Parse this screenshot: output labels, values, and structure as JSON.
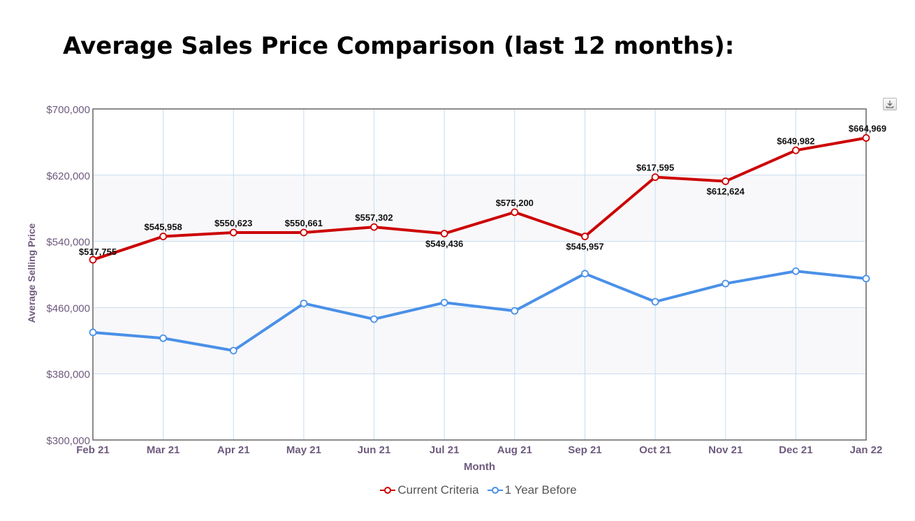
{
  "title": "Average Sales Price Comparison (last 12 months):",
  "export_icon": "download-icon",
  "colors": {
    "current": "#cc0000",
    "prior": "#4a90e8",
    "axis_text": "#6e5a7e",
    "grid": "#c6dcef"
  },
  "chart_data": {
    "type": "line",
    "categories": [
      "Feb 21",
      "Mar 21",
      "Apr 21",
      "May 21",
      "Jun 21",
      "Jul 21",
      "Aug 21",
      "Sep 21",
      "Oct 21",
      "Nov 21",
      "Dec 21",
      "Jan 22"
    ],
    "series": [
      {
        "name": "Current Criteria",
        "values": [
          517755,
          545958,
          550623,
          550661,
          557302,
          549436,
          575200,
          545957,
          617595,
          612624,
          649982,
          664969
        ]
      },
      {
        "name": "1 Year Before",
        "values": [
          430000,
          423000,
          408000,
          465000,
          446000,
          466000,
          456000,
          501000,
          467000,
          489000,
          504000,
          495000
        ]
      }
    ],
    "data_labels": [
      "$517,755",
      "$545,958",
      "$550,623",
      "$550,661",
      "$557,302",
      "$549,436",
      "$575,200",
      "$545,957",
      "$617,595",
      "$612,624",
      "$649,982",
      "$664,969"
    ],
    "xlabel": "Month",
    "ylabel": "Average Selling Price",
    "ylim": [
      300000,
      700000
    ],
    "yticks": [
      300000,
      380000,
      460000,
      540000,
      620000,
      700000
    ],
    "ytick_labels": [
      "$300,000",
      "$380,000",
      "$460,000",
      "$540,000",
      "$620,000",
      "$700,000"
    ],
    "grid": true,
    "legend_position": "bottom-center"
  }
}
